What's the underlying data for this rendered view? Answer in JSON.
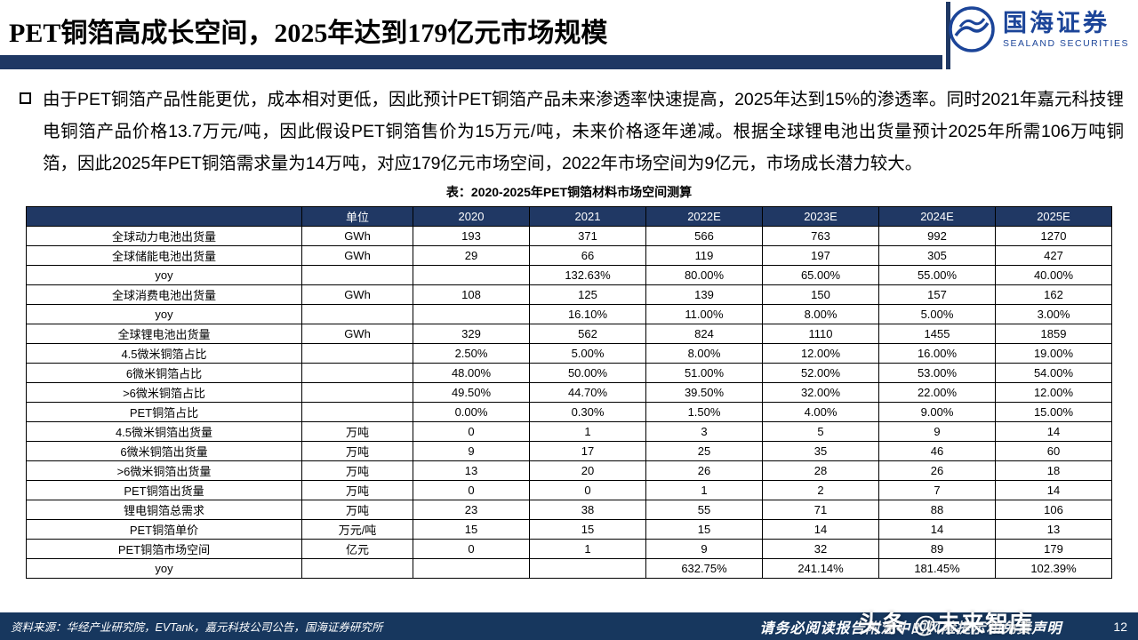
{
  "header": {
    "title": "PET铜箔高成长空间，2025年达到179亿元市场规模",
    "logo_name": "国海证券",
    "logo_subtitle": "SEALAND SECURITIES"
  },
  "body": {
    "paragraph": "由于PET铜箔产品性能更优，成本相对更低，因此预计PET铜箔产品未来渗透率快速提高，2025年达到15%的渗透率。同时2021年嘉元科技锂电铜箔产品价格13.7万元/吨，因此假设PET铜箔售价为15万元/吨，未来价格逐年递减。根据全球锂电池出货量预计2025年所需106万吨铜箔，因此2025年PET铜箔需求量为14万吨，对应179亿元市场空间，2022年市场空间为9亿元，市场成长潜力较大。"
  },
  "table": {
    "title": "表：2020-2025年PET铜箔材料市场空间测算",
    "columns": [
      "",
      "单位",
      "2020",
      "2021",
      "2022E",
      "2023E",
      "2024E",
      "2025E"
    ],
    "rows": [
      [
        "全球动力电池出货量",
        "GWh",
        "193",
        "371",
        "566",
        "763",
        "992",
        "1270"
      ],
      [
        "全球储能电池出货量",
        "GWh",
        "29",
        "66",
        "119",
        "197",
        "305",
        "427"
      ],
      [
        "yoy",
        "",
        "",
        "132.63%",
        "80.00%",
        "65.00%",
        "55.00%",
        "40.00%"
      ],
      [
        "全球消费电池出货量",
        "GWh",
        "108",
        "125",
        "139",
        "150",
        "157",
        "162"
      ],
      [
        "yoy",
        "",
        "",
        "16.10%",
        "11.00%",
        "8.00%",
        "5.00%",
        "3.00%"
      ],
      [
        "全球锂电池出货量",
        "GWh",
        "329",
        "562",
        "824",
        "1110",
        "1455",
        "1859"
      ],
      [
        "4.5微米铜箔占比",
        "",
        "2.50%",
        "5.00%",
        "8.00%",
        "12.00%",
        "16.00%",
        "19.00%"
      ],
      [
        "6微米铜箔占比",
        "",
        "48.00%",
        "50.00%",
        "51.00%",
        "52.00%",
        "53.00%",
        "54.00%"
      ],
      [
        ">6微米铜箔占比",
        "",
        "49.50%",
        "44.70%",
        "39.50%",
        "32.00%",
        "22.00%",
        "12.00%"
      ],
      [
        "PET铜箔占比",
        "",
        "0.00%",
        "0.30%",
        "1.50%",
        "4.00%",
        "9.00%",
        "15.00%"
      ],
      [
        "4.5微米铜箔出货量",
        "万吨",
        "0",
        "1",
        "3",
        "5",
        "9",
        "14"
      ],
      [
        "6微米铜箔出货量",
        "万吨",
        "9",
        "17",
        "25",
        "35",
        "46",
        "60"
      ],
      [
        ">6微米铜箔出货量",
        "万吨",
        "13",
        "20",
        "26",
        "28",
        "26",
        "18"
      ],
      [
        "PET铜箔出货量",
        "万吨",
        "0",
        "0",
        "1",
        "2",
        "7",
        "14"
      ],
      [
        "锂电铜箔总需求",
        "万吨",
        "23",
        "38",
        "55",
        "71",
        "88",
        "106"
      ],
      [
        "PET铜箔单价",
        "万元/吨",
        "15",
        "15",
        "15",
        "14",
        "14",
        "13"
      ],
      [
        "PET铜箔市场空间",
        "亿元",
        "0",
        "1",
        "9",
        "32",
        "89",
        "179"
      ],
      [
        "yoy",
        "",
        "",
        "",
        "632.75%",
        "241.14%",
        "181.45%",
        "102.39%"
      ]
    ]
  },
  "footer": {
    "source": "资料来源：华经产业研究院，EVTank，嘉元科技公司公告，国海证券研究所",
    "disclaimer": "请务必阅读报告附注中的风险提示和免责声明",
    "page_number": "12"
  },
  "watermark": {
    "text": "头条 @未来智库"
  },
  "colors": {
    "title_bar_navy": "#1F3864",
    "table_header_navy": "#203864",
    "footer_navy": "#17375E",
    "logo_blue": "#1C4599"
  }
}
